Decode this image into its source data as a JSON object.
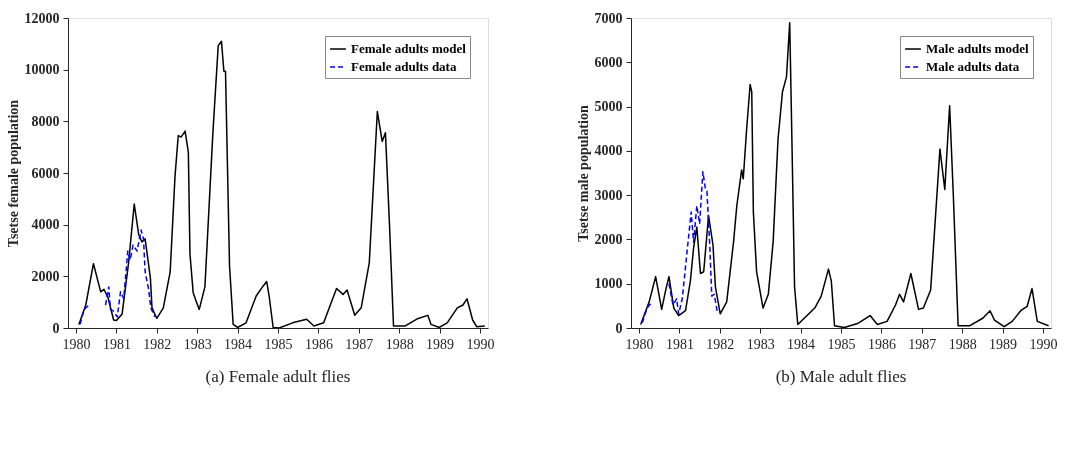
{
  "chart_data": [
    {
      "type": "line",
      "ylabel": "Tsetse female population",
      "xlim": [
        1979.8,
        1990.2
      ],
      "ylim": [
        0,
        12000
      ],
      "xticks": [
        1980,
        1981,
        1982,
        1983,
        1984,
        1985,
        1986,
        1987,
        1988,
        1989,
        1990
      ],
      "yticks": [
        0,
        2000,
        4000,
        6000,
        8000,
        10000,
        12000
      ],
      "legend": "top right",
      "grid": false,
      "annotations": [
        "(a) Female adult flies"
      ],
      "series": [
        {
          "name": "Female adults model",
          "color": "#000000",
          "line_style": "solid",
          "x": [
            1980.07,
            1980.24,
            1980.43,
            1980.61,
            1980.69,
            1980.79,
            1980.93,
            1981.0,
            1981.14,
            1981.3,
            1981.44,
            1981.55,
            1981.63,
            1981.71,
            1981.84,
            1981.88,
            1982.0,
            1982.16,
            1982.33,
            1982.45,
            1982.53,
            1982.6,
            1982.7,
            1982.78,
            1982.82,
            1982.9,
            1982.98,
            1983.05,
            1983.19,
            1983.39,
            1983.52,
            1983.6,
            1983.66,
            1983.7,
            1983.8,
            1983.89,
            1984.0,
            1984.21,
            1984.46,
            1984.62,
            1984.72,
            1984.78,
            1984.88,
            1985.03,
            1985.36,
            1985.71,
            1985.89,
            1986.13,
            1986.45,
            1986.61,
            1986.71,
            1986.9,
            1987.06,
            1987.26,
            1987.46,
            1987.58,
            1987.66,
            1987.76,
            1987.86,
            1988.15,
            1988.47,
            1988.71,
            1988.79,
            1988.99,
            1989.19,
            1989.44,
            1989.58,
            1989.68,
            1989.82,
            1989.92,
            1990.12
          ],
          "values": [
            140,
            890,
            2490,
            1400,
            1500,
            1180,
            310,
            290,
            545,
            2520,
            4800,
            3620,
            3330,
            3450,
            1940,
            780,
            370,
            780,
            2170,
            5880,
            7450,
            7390,
            7620,
            6810,
            2870,
            1360,
            1010,
            720,
            1590,
            7620,
            10930,
            11100,
            9940,
            9940,
            2400,
            140,
            20,
            200,
            1240,
            1600,
            1800,
            1240,
            20,
            0,
            200,
            340,
            80,
            200,
            1530,
            1300,
            1470,
            490,
            780,
            2520,
            8380,
            7220,
            7560,
            4030,
            80,
            80,
            370,
            490,
            140,
            20,
            200,
            780,
            890,
            1130,
            310,
            50,
            80
          ]
        },
        {
          "name": "Female adults data",
          "color": "#0000ff",
          "line_style": "dashed",
          "x": [
            1980.1,
            1980.2,
            1980.32,
            1980.5,
            1980.73,
            1980.81,
            1980.85,
            1980.92,
            1981.02,
            1981.1,
            1981.18,
            1981.28,
            1981.34,
            1981.41,
            1981.51,
            1981.61,
            1981.67,
            1981.71,
            1981.8,
            1981.85,
            1981.95
          ],
          "values": [
            140,
            720,
            890,
            null,
            890,
            1590,
            720,
            660,
            430,
            1400,
            1130,
            2980,
            2630,
            3210,
            2980,
            3790,
            3450,
            2170,
            1470,
            780,
            430
          ]
        }
      ]
    },
    {
      "type": "line",
      "ylabel": "Tsetse male population",
      "xlim": [
        1979.8,
        1990.2
      ],
      "ylim": [
        0,
        7000
      ],
      "xticks": [
        1980,
        1981,
        1982,
        1983,
        1984,
        1985,
        1986,
        1987,
        1988,
        1989,
        1990
      ],
      "yticks": [
        0,
        1000,
        2000,
        3000,
        4000,
        5000,
        6000,
        7000
      ],
      "legend": "top right",
      "grid": false,
      "annotations": [
        "(b) Male adult flies"
      ],
      "series": [
        {
          "name": "Male adults model",
          "color": "#000000",
          "line_style": "solid",
          "x": [
            1980.04,
            1980.25,
            1980.41,
            1980.56,
            1980.66,
            1980.74,
            1980.86,
            1980.98,
            1981.15,
            1981.27,
            1981.35,
            1981.43,
            1981.52,
            1981.6,
            1981.72,
            1981.83,
            1981.89,
            1982.01,
            1982.17,
            1982.34,
            1982.42,
            1982.54,
            1982.58,
            1982.66,
            1982.75,
            1982.79,
            1982.83,
            1982.91,
            1982.99,
            1983.07,
            1983.2,
            1983.32,
            1983.44,
            1983.55,
            1983.65,
            1983.73,
            1983.79,
            1983.85,
            1983.93,
            1984.35,
            1984.51,
            1984.69,
            1984.76,
            1984.84,
            1985.08,
            1985.41,
            1985.72,
            1985.9,
            1986.14,
            1986.35,
            1986.45,
            1986.55,
            1986.73,
            1986.92,
            1987.04,
            1987.22,
            1987.45,
            1987.57,
            1987.69,
            1987.78,
            1987.9,
            1988.18,
            1988.51,
            1988.69,
            1988.8,
            1989.04,
            1989.24,
            1989.45,
            1989.61,
            1989.73,
            1989.86,
            1990.14
          ],
          "values": [
            80,
            590,
            1160,
            420,
            860,
            1160,
            450,
            280,
            390,
            1060,
            1810,
            2280,
            1230,
            1270,
            2540,
            1880,
            930,
            320,
            590,
            1950,
            2760,
            3570,
            3370,
            4450,
            5500,
            5330,
            2620,
            1270,
            860,
            450,
            760,
            1950,
            4250,
            5330,
            5670,
            6890,
            3970,
            930,
            80,
            450,
            720,
            1330,
            1060,
            50,
            10,
            100,
            280,
            80,
            150,
            520,
            760,
            590,
            1230,
            420,
            450,
            860,
            4040,
            3130,
            5020,
            3030,
            50,
            50,
            220,
            390,
            180,
            30,
            150,
            390,
            490,
            890,
            150,
            50
          ]
        },
        {
          "name": "Male adults data",
          "color": "#0000ff",
          "line_style": "dashed",
          "x": [
            1980.08,
            1980.2,
            1980.33,
            1980.5,
            1980.74,
            1980.84,
            1980.93,
            1980.98,
            1981.07,
            1981.19,
            1981.29,
            1981.35,
            1981.43,
            1981.5,
            1981.58,
            1981.64,
            1981.68,
            1981.75,
            1981.8,
            1981.86,
            1981.94
          ],
          "values": [
            120,
            450,
            600,
            null,
            1000,
            520,
            660,
            320,
            660,
            1740,
            2620,
            1940,
            2760,
            2350,
            3530,
            3160,
            3090,
            1880,
            720,
            760,
            350
          ]
        }
      ]
    }
  ]
}
